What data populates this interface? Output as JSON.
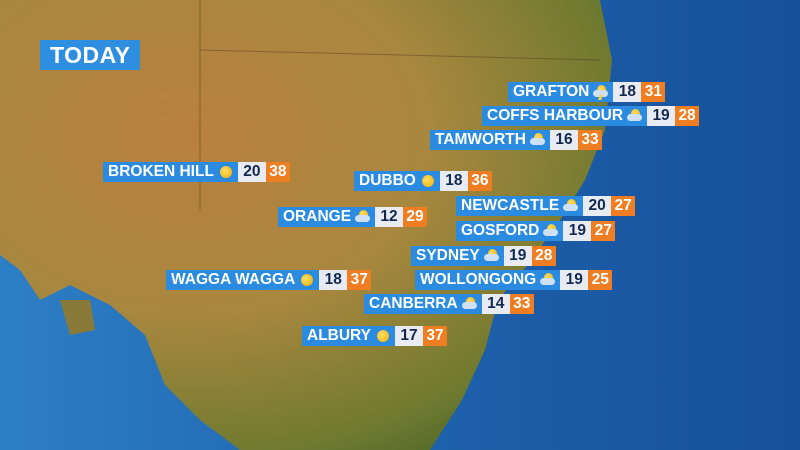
{
  "title": "TODAY",
  "colors": {
    "label_bg": "#2a8be0",
    "min_bg": "#e8ecf2",
    "max_bg": "#ef7d22",
    "ocean": "#1d5fa8"
  },
  "locations": [
    {
      "name": "GRAFTON",
      "icon": "storm-icon",
      "min": "18",
      "max": "31"
    },
    {
      "name": "COFFS HARBOUR",
      "icon": "partly-cloudy-icon",
      "min": "19",
      "max": "28"
    },
    {
      "name": "TAMWORTH",
      "icon": "partly-cloudy-icon",
      "min": "16",
      "max": "33"
    },
    {
      "name": "BROKEN HILL",
      "icon": "sunny-icon",
      "min": "20",
      "max": "38"
    },
    {
      "name": "DUBBO",
      "icon": "sunny-icon",
      "min": "18",
      "max": "36"
    },
    {
      "name": "NEWCASTLE",
      "icon": "partly-cloudy-icon",
      "min": "20",
      "max": "27"
    },
    {
      "name": "ORANGE",
      "icon": "partly-cloudy-icon",
      "min": "12",
      "max": "29"
    },
    {
      "name": "GOSFORD",
      "icon": "partly-cloudy-icon",
      "min": "19",
      "max": "27"
    },
    {
      "name": "SYDNEY",
      "icon": "partly-cloudy-icon",
      "min": "19",
      "max": "28"
    },
    {
      "name": "WOLLONGONG",
      "icon": "partly-cloudy-icon",
      "min": "19",
      "max": "25"
    },
    {
      "name": "WAGGA WAGGA",
      "icon": "sunny-icon",
      "min": "18",
      "max": "37"
    },
    {
      "name": "CANBERRA",
      "icon": "partly-cloudy-icon",
      "min": "14",
      "max": "33"
    },
    {
      "name": "ALBURY",
      "icon": "sunny-icon",
      "min": "17",
      "max": "37"
    }
  ]
}
